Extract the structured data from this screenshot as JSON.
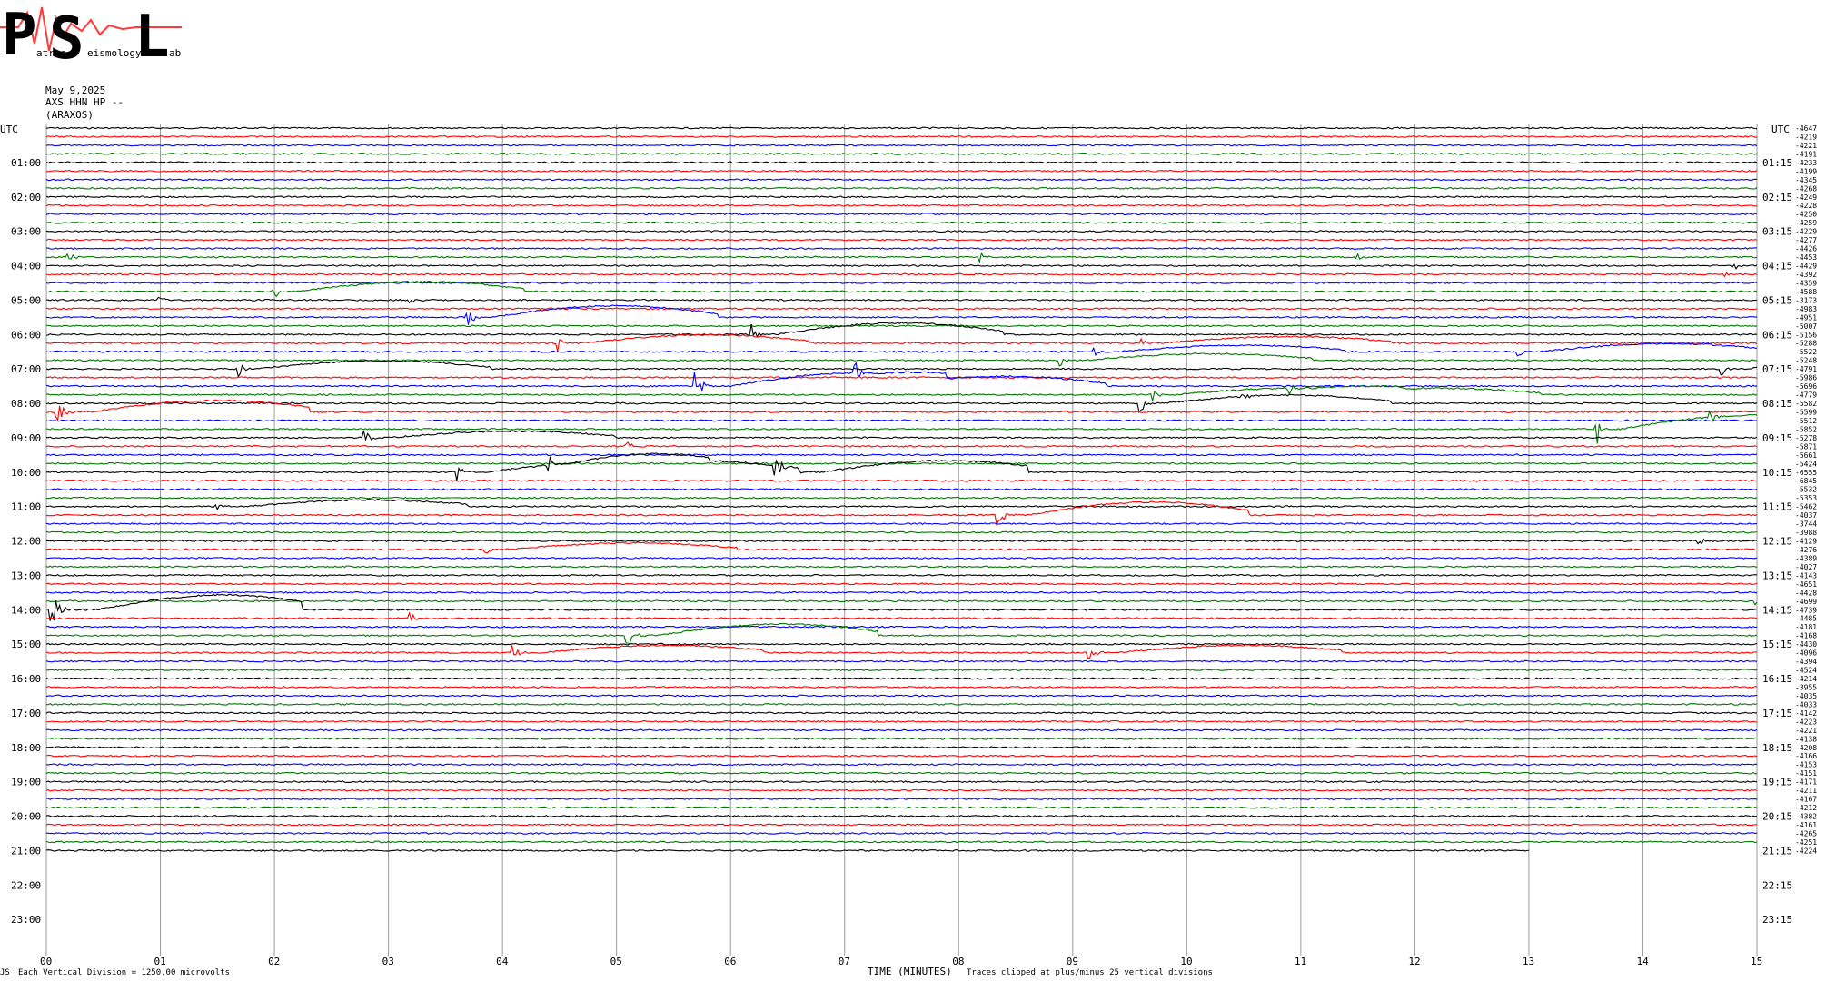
{
  "logo": {
    "letters": [
      "P",
      "S",
      "L"
    ],
    "words": [
      "atras",
      "eismology",
      "ab"
    ],
    "trace_color": "#ff3a3a",
    "text_color": "#1fb6d8"
  },
  "header": {
    "date": "May 9,2025",
    "station": "AXS HHN HP --",
    "location": "(ARAXOS)"
  },
  "left_axis": {
    "title": "UTC",
    "labels": [
      "01:00",
      "02:00",
      "03:00",
      "04:00",
      "05:00",
      "06:00",
      "07:00",
      "08:00",
      "09:00",
      "10:00",
      "11:00",
      "12:00",
      "13:00",
      "14:00",
      "15:00",
      "16:00",
      "17:00",
      "18:00",
      "19:00",
      "20:00",
      "21:00",
      "22:00",
      "23:00"
    ]
  },
  "right_axis": {
    "title": "UTC",
    "labels": [
      "01:15",
      "02:15",
      "03:15",
      "04:15",
      "05:15",
      "06:15",
      "07:15",
      "08:15",
      "09:15",
      "10:15",
      "11:15",
      "12:15",
      "13:15",
      "14:15",
      "15:15",
      "16:15",
      "17:15",
      "18:15",
      "19:15",
      "20:15",
      "21:15",
      "22:15",
      "23:15"
    ],
    "offsets": [
      "-4647",
      "-4219",
      "-4221",
      "-4191",
      "-4233",
      "-4199",
      "-4345",
      "-4268",
      "-4249",
      "-4228",
      "-4250",
      "-4259",
      "-4229",
      "-4277",
      "-4426",
      "-4453",
      "-4429",
      "-4392",
      "-4359",
      "-4588",
      "-3173",
      "-4983",
      "-4951",
      "-5007",
      "-5156",
      "-5288",
      "-5522",
      "-5248",
      "-4791",
      "-5986",
      "-5696",
      "-4779",
      "-5582",
      "-5599",
      "-5512",
      "-5852",
      "-5278",
      "-5871",
      "-5661",
      "-5424",
      "-6555",
      "-6845",
      "-5532",
      "-5353",
      "-5462",
      "-4037",
      "-3744",
      "-3988",
      "-4129",
      "-4276",
      "-4389",
      "-4027",
      "-4143",
      "-4651",
      "-4428",
      "-4699",
      "-4739",
      "-4485",
      "-4181",
      "-4168",
      "-4430",
      "-4096",
      "-4394",
      "-4524",
      "-4214",
      "-3955",
      "-4035",
      "-4033",
      "-4142",
      "-4223",
      "-4221",
      "-4138",
      "-4208",
      "-4166",
      "-4153",
      "-4151",
      "-4171",
      "-4211",
      "-4167",
      "-4212",
      "-4382",
      "-4161",
      "-4265",
      "-4251",
      "-4224"
    ]
  },
  "footer": {
    "scale_note": "Each Vertical Division = 1250.00 microvolts",
    "xlabel": "TIME (MINUTES)",
    "clip_note": "Traces clipped at plus/minus 25 vertical divisions",
    "corner": "JS"
  },
  "chart_data": {
    "type": "line",
    "title": "",
    "xlabel": "TIME (MINUTES)",
    "x_ticks": [
      "00",
      "01",
      "02",
      "03",
      "04",
      "05",
      "06",
      "07",
      "08",
      "09",
      "10",
      "11",
      "12",
      "13",
      "14",
      "15"
    ],
    "xlim": [
      0,
      15
    ],
    "minutes_per_line": 15,
    "lines_total": 96,
    "lines_recorded": 85,
    "last_line_end_minute": 13,
    "grid": true,
    "trace_colors": [
      "#000000",
      "#ff0000",
      "#0000ff",
      "#007800"
    ],
    "events": [
      {
        "line": 15,
        "minute": 0.2,
        "amp": 6,
        "dur": 0.25
      },
      {
        "line": 15,
        "minute": 8.2,
        "amp": 7,
        "dur": 0.3
      },
      {
        "line": 15,
        "minute": 11.5,
        "amp": 4,
        "dur": 0.2
      },
      {
        "line": 16,
        "minute": 14.8,
        "amp": 6,
        "dur": 0.25
      },
      {
        "line": 17,
        "minute": 14.7,
        "amp": 5,
        "dur": 0.25
      },
      {
        "line": 19,
        "minute": 2.0,
        "amp": 12,
        "dur": 0.2
      },
      {
        "line": 20,
        "minute": 1.0,
        "amp": 6,
        "dur": 0.2
      },
      {
        "line": 20,
        "minute": 3.2,
        "amp": 5,
        "dur": 0.2
      },
      {
        "line": 22,
        "minute": 3.7,
        "amp": 14,
        "dur": 0.2
      },
      {
        "line": 24,
        "minute": 6.2,
        "amp": 14,
        "dur": 0.2
      },
      {
        "line": 25,
        "minute": 4.5,
        "amp": 10,
        "dur": 0.2
      },
      {
        "line": 25,
        "minute": 9.6,
        "amp": 8,
        "dur": 0.2
      },
      {
        "line": 26,
        "minute": 12.9,
        "amp": 10,
        "dur": 0.2
      },
      {
        "line": 26,
        "minute": 9.2,
        "amp": 8,
        "dur": 0.2
      },
      {
        "line": 27,
        "minute": 8.9,
        "amp": 8,
        "dur": 0.2
      },
      {
        "line": 28,
        "minute": 1.7,
        "amp": 10,
        "dur": 0.15
      },
      {
        "line": 28,
        "minute": 14.7,
        "amp": 8,
        "dur": 0.2
      },
      {
        "line": 30,
        "minute": 5.7,
        "amp": 16,
        "dur": 0.3
      },
      {
        "line": 30,
        "minute": 7.1,
        "amp": 12,
        "dur": 0.2
      },
      {
        "line": 31,
        "minute": 9.7,
        "amp": 8,
        "dur": 0.2
      },
      {
        "line": 31,
        "minute": 10.9,
        "amp": 8,
        "dur": 0.2
      },
      {
        "line": 32,
        "minute": 9.6,
        "amp": 10,
        "dur": 0.2
      },
      {
        "line": 32,
        "minute": 10.5,
        "amp": 6,
        "dur": 0.25
      },
      {
        "line": 33,
        "minute": 0.1,
        "amp": 14,
        "dur": 0.3
      },
      {
        "line": 35,
        "minute": 13.6,
        "amp": 16,
        "dur": 0.2
      },
      {
        "line": 35,
        "minute": 14.6,
        "amp": 8,
        "dur": 0.2
      },
      {
        "line": 36,
        "minute": 2.8,
        "amp": 8,
        "dur": 0.2
      },
      {
        "line": 37,
        "minute": 5.1,
        "amp": 7,
        "dur": 0.2
      },
      {
        "line": 40,
        "minute": 3.6,
        "amp": 12,
        "dur": 0.25
      },
      {
        "line": 40,
        "minute": 4.4,
        "amp": 14,
        "dur": 0.2
      },
      {
        "line": 40,
        "minute": 6.4,
        "amp": 14,
        "dur": 0.4
      },
      {
        "line": 44,
        "minute": 1.5,
        "amp": 8,
        "dur": 0.25
      },
      {
        "line": 45,
        "minute": 8.35,
        "amp": 16,
        "dur": 0.25
      },
      {
        "line": 49,
        "minute": 3.85,
        "amp": 8,
        "dur": 0.2
      },
      {
        "line": 48,
        "minute": 14.5,
        "amp": 6,
        "dur": 0.2
      },
      {
        "line": 55,
        "minute": 15.0,
        "amp": 4,
        "dur": 0.1
      },
      {
        "line": 56,
        "minute": 0.05,
        "amp": 18,
        "dur": 0.4
      },
      {
        "line": 57,
        "minute": 3.2,
        "amp": 6,
        "dur": 0.2
      },
      {
        "line": 59,
        "minute": 5.1,
        "amp": 14,
        "dur": 0.25
      },
      {
        "line": 61,
        "minute": 4.1,
        "amp": 9,
        "dur": 0.25
      },
      {
        "line": 61,
        "minute": 9.15,
        "amp": 9,
        "dur": 0.25
      }
    ]
  }
}
